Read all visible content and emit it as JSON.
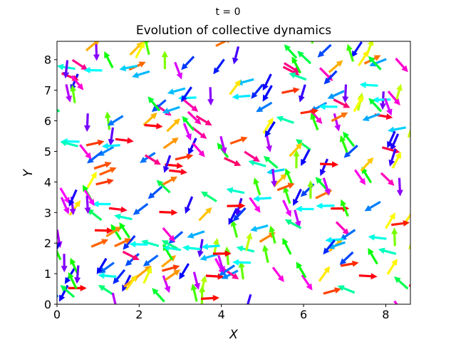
{
  "chart_data": {
    "type": "quiver",
    "suptitle": "t = 0",
    "title": "Evolution of collective dynamics",
    "xlabel": "X",
    "ylabel": "Y",
    "xlim": [
      0,
      8.6
    ],
    "ylim": [
      0,
      8.6
    ],
    "xticks": [
      0,
      2,
      4,
      6,
      8
    ],
    "yticks": [
      0,
      1,
      2,
      3,
      4,
      5,
      6,
      7,
      8
    ],
    "grid": false,
    "arrow_length": 0.45,
    "colormap": "hsv (color encodes heading angle)",
    "particle_count": 300,
    "seed": 7
  }
}
